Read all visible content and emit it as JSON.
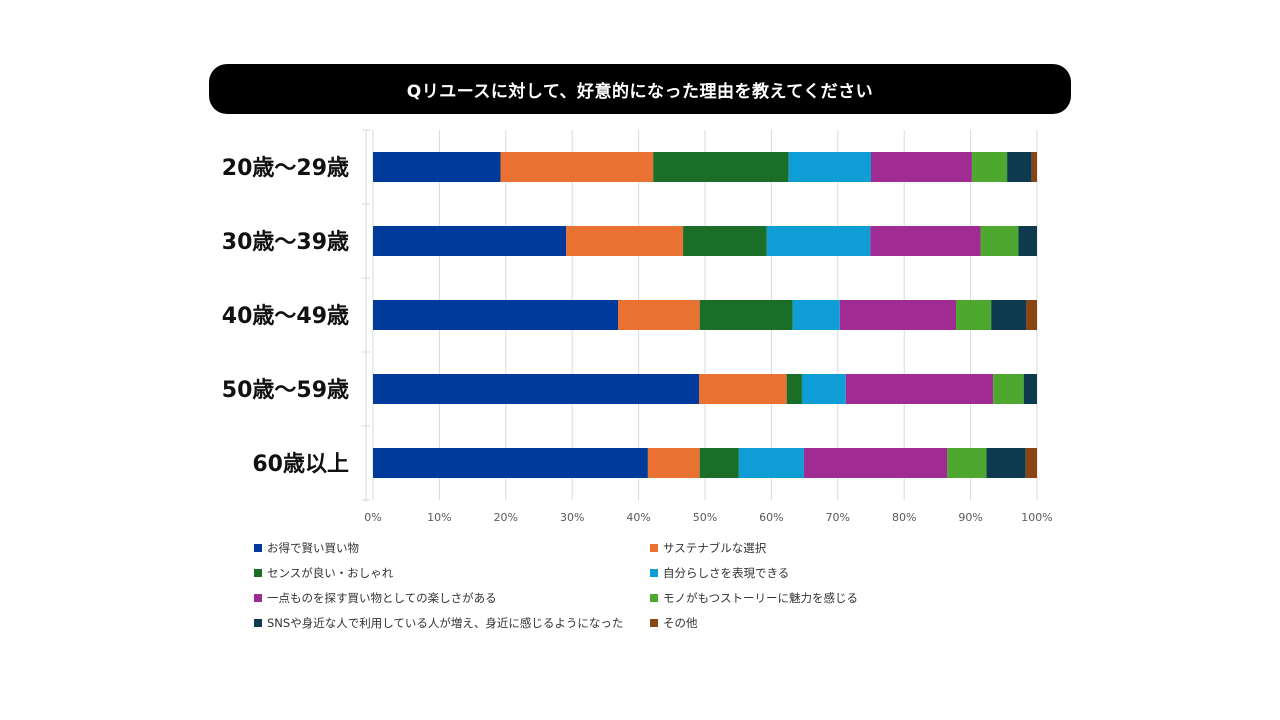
{
  "title": "Qリユースに対して、好意的になった理由を教えてください",
  "chart_data": {
    "type": "bar",
    "orientation": "horizontal",
    "stacked": true,
    "percent": true,
    "title": "Qリユースに対して、好意的になった理由を教えてください",
    "categories": [
      "20歳〜29歳",
      "30歳〜39歳",
      "40歳〜49歳",
      "50歳〜59歳",
      "60歳以上"
    ],
    "xlim": [
      0,
      100
    ],
    "x_ticks": [
      "0%",
      "10%",
      "20%",
      "30%",
      "40%",
      "50%",
      "60%",
      "70%",
      "80%",
      "90%",
      "100%"
    ],
    "grid": true,
    "legend_position": "bottom",
    "series": [
      {
        "name": "お得で賢い買い物",
        "color": "#003A9B",
        "values": [
          19.2,
          29.1,
          36.9,
          49.1,
          41.4
        ]
      },
      {
        "name": "サステナブルな選択",
        "color": "#E97132",
        "values": [
          23.0,
          17.6,
          12.3,
          13.2,
          7.8
        ]
      },
      {
        "name": "センスが良い・おしゃれ",
        "color": "#1B6E27",
        "values": [
          20.4,
          12.6,
          14.0,
          2.3,
          5.9
        ]
      },
      {
        "name": "自分らしさを表現できる",
        "color": "#0E9ED5",
        "values": [
          12.4,
          15.6,
          7.1,
          6.6,
          9.8
        ]
      },
      {
        "name": "一点ものを探す買い物としての楽しさがある",
        "color": "#A02B93",
        "values": [
          15.2,
          16.6,
          17.5,
          22.2,
          21.6
        ]
      },
      {
        "name": "モノがもつストーリーに魅力を感じる",
        "color": "#4EA72E",
        "values": [
          5.3,
          5.7,
          5.3,
          4.6,
          5.9
        ]
      },
      {
        "name": "SNSや身近な人で利用している人が増え、身近に感じるようになった",
        "color": "#0D3A4F",
        "values": [
          3.7,
          2.8,
          5.3,
          2.0,
          5.9
        ]
      },
      {
        "name": "その他",
        "color": "#8B4513",
        "values": [
          0.8,
          0.0,
          1.6,
          0.0,
          1.7
        ]
      }
    ]
  }
}
